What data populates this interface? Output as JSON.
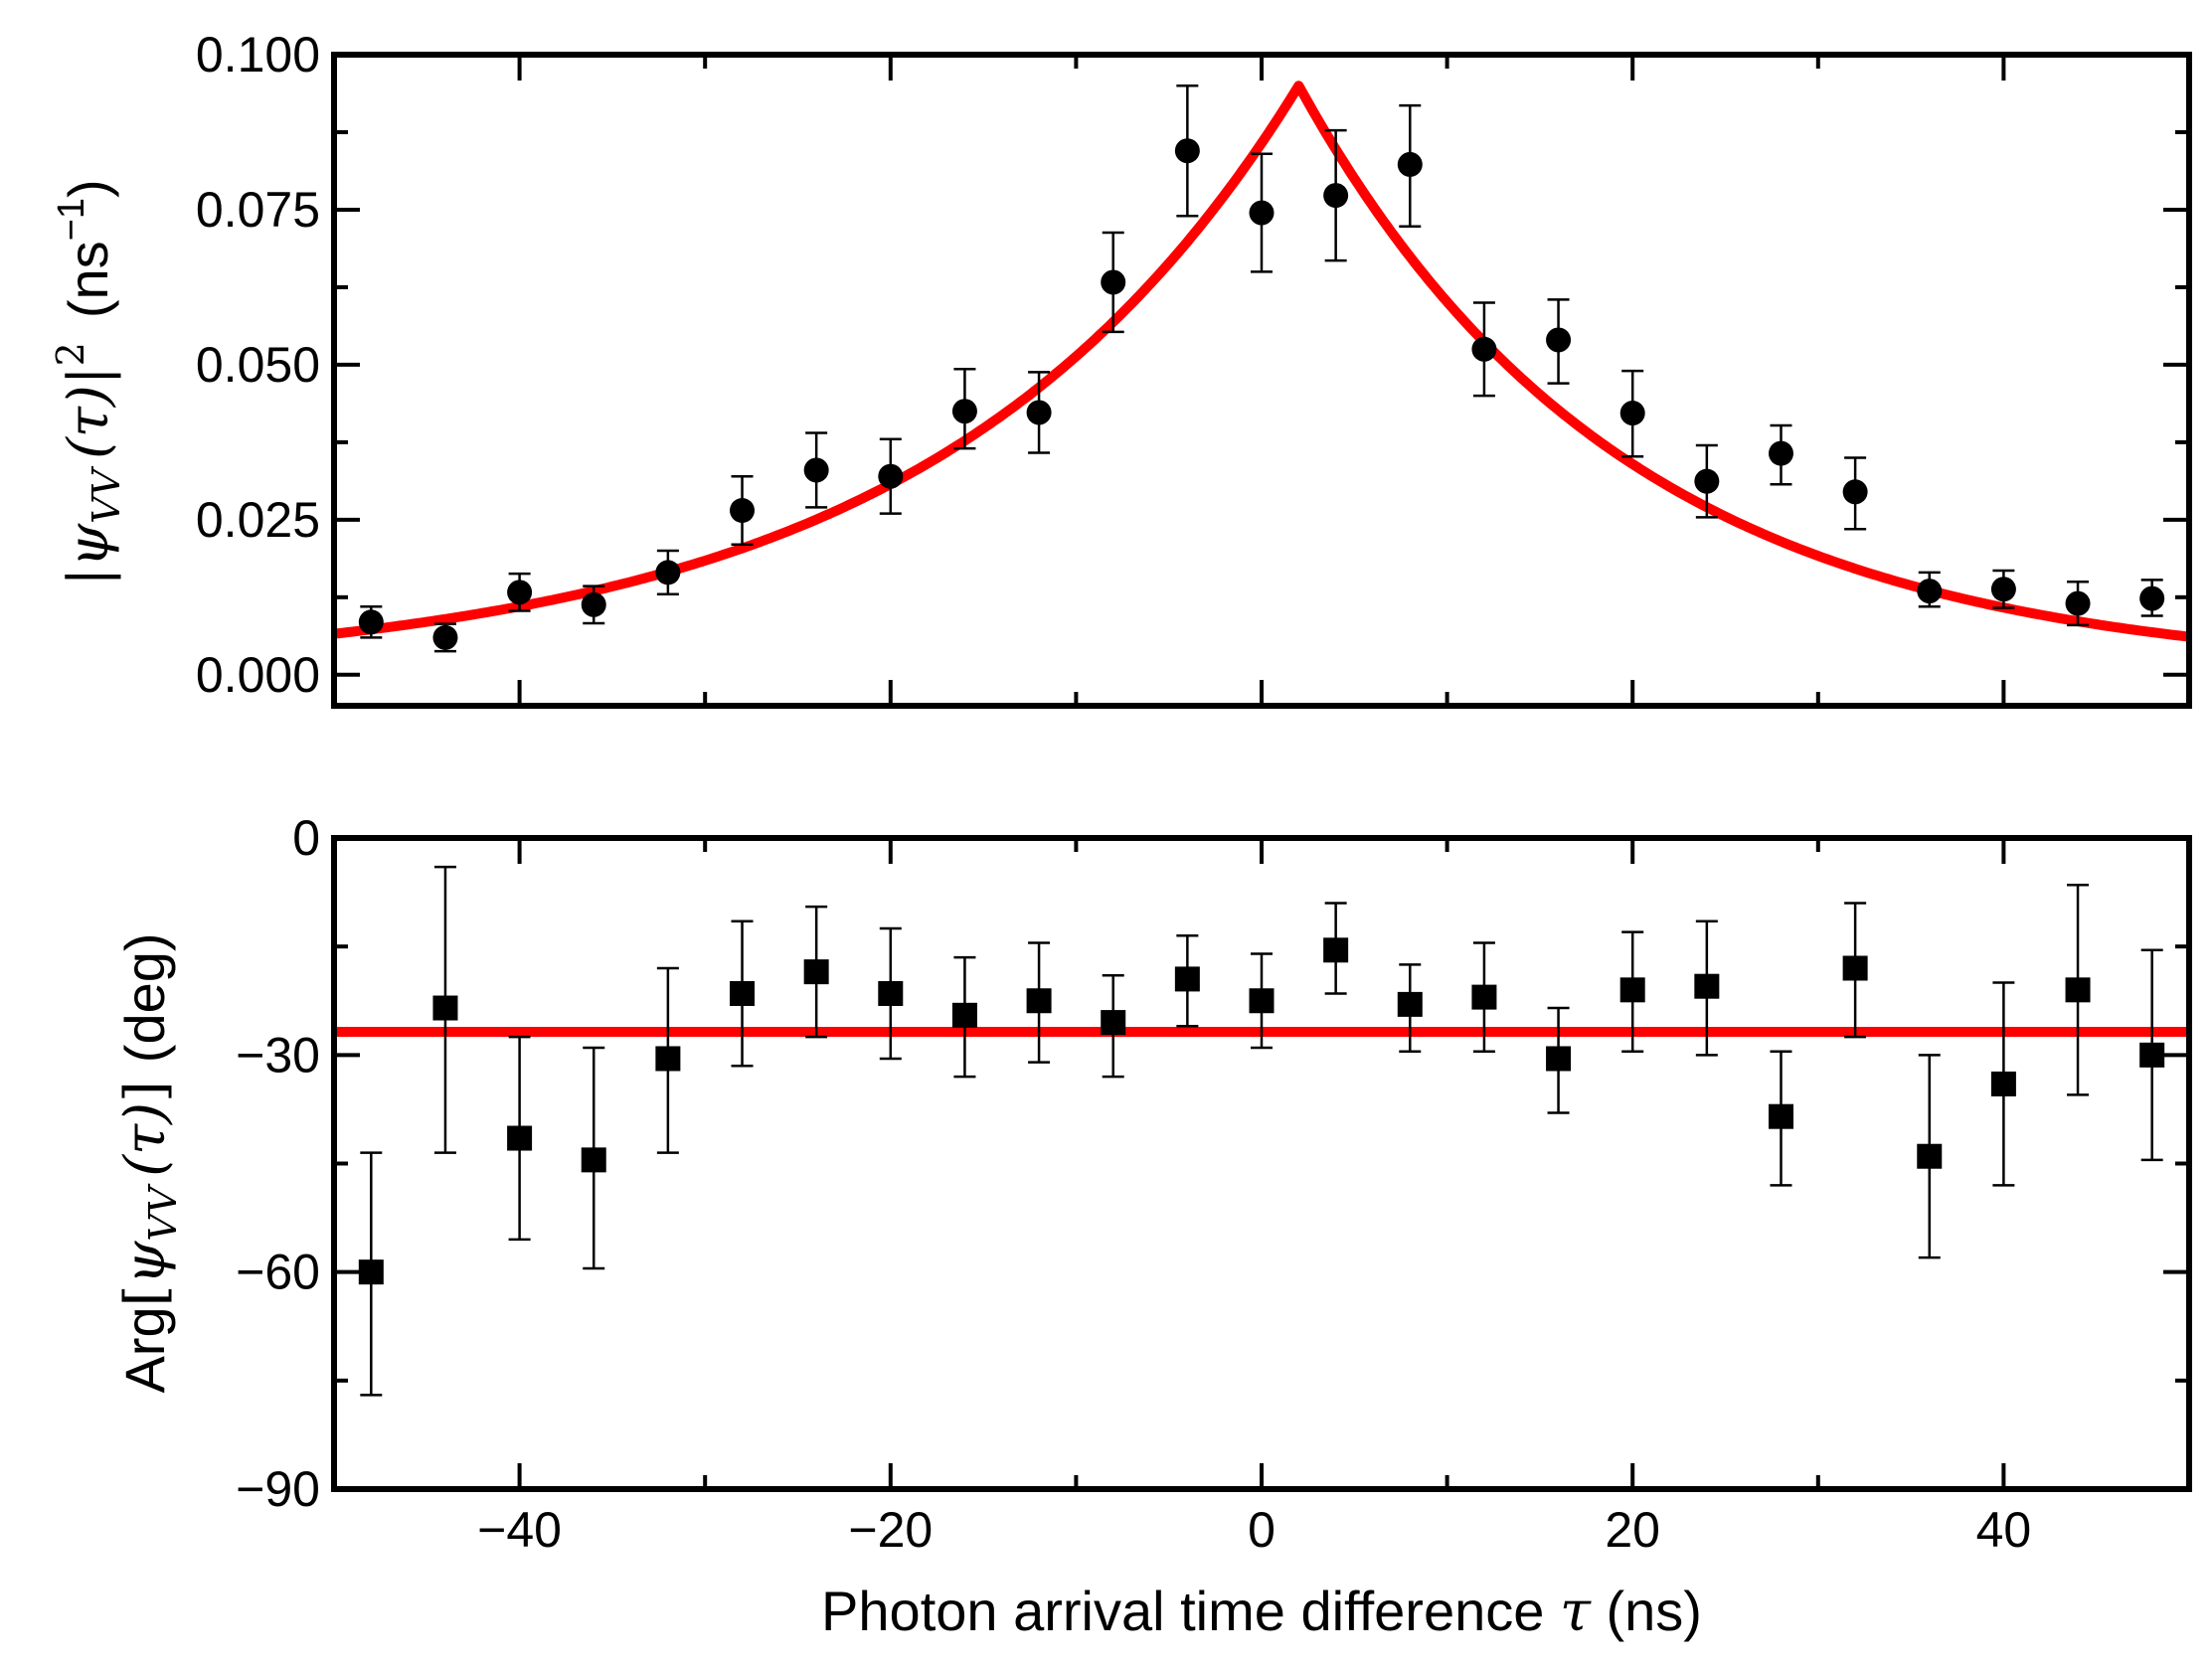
{
  "chart_data": [
    {
      "type": "scatter",
      "panel": "top",
      "ylabel": "|ψ_VV(τ)|² (ns⁻¹)",
      "ylabel_parts": {
        "bar_open": "|",
        "psi": "ψ",
        "sub": "VV",
        "tau": "(τ)",
        "bar_close": "|",
        "sup": "2",
        "unit": "(ns",
        "unit_exp": "−1",
        "unit_close": ")"
      },
      "xlim": [
        -50,
        50
      ],
      "ylim": [
        -0.005,
        0.1
      ],
      "yticks": [
        0.0,
        0.025,
        0.05,
        0.075,
        0.1
      ],
      "ytick_labels": [
        "0.000",
        "0.025",
        "0.050",
        "0.075",
        "0.100"
      ],
      "marker": "circle",
      "marker_color": "#000000",
      "x": [
        -48,
        -44,
        -40,
        -36,
        -32,
        -28,
        -24,
        -20,
        -16,
        -12,
        -8,
        -4,
        0,
        4,
        8,
        12,
        16,
        20,
        24,
        28,
        32,
        36,
        40,
        44,
        48
      ],
      "y": [
        0.0085,
        0.006,
        0.0133,
        0.0113,
        0.0165,
        0.0265,
        0.033,
        0.032,
        0.0425,
        0.0423,
        0.0633,
        0.0845,
        0.0745,
        0.0773,
        0.0823,
        0.0525,
        0.054,
        0.0422,
        0.0312,
        0.0357,
        0.0295,
        0.0135,
        0.0138,
        0.0115,
        0.0123
      ],
      "yerr_low": [
        0.0025,
        0.0022,
        0.003,
        0.003,
        0.0035,
        0.0055,
        0.006,
        0.006,
        0.006,
        0.0065,
        0.008,
        0.0105,
        0.0095,
        0.0105,
        0.01,
        0.0075,
        0.007,
        0.007,
        0.0058,
        0.005,
        0.006,
        0.0025,
        0.003,
        0.0035,
        0.0028
      ],
      "yerr_high": [
        0.0025,
        0.0022,
        0.003,
        0.003,
        0.0035,
        0.0055,
        0.006,
        0.006,
        0.0068,
        0.0065,
        0.008,
        0.0105,
        0.0095,
        0.0105,
        0.0095,
        0.0075,
        0.0065,
        0.0068,
        0.0058,
        0.0045,
        0.0055,
        0.003,
        0.003,
        0.0035,
        0.003
      ],
      "fit": {
        "color": "#ff0000",
        "form": "two-sided exponential",
        "peak_x": 2.0,
        "peak_y": 0.095,
        "decay_left_ns": 19.5,
        "decay_right_ns": 17.5
      }
    },
    {
      "type": "scatter",
      "panel": "bottom",
      "xlabel": "Photon arrival time difference τ (ns)",
      "xlabel_parts": {
        "text": "Photon arrival time difference ",
        "tau": "τ",
        "unit": " (ns)"
      },
      "ylabel": "Arg[ψ_VV(τ)] (deg)",
      "ylabel_parts": {
        "arg": "Arg",
        "bracket_open": "[",
        "psi": "ψ",
        "sub": "VV",
        "tau": "(τ)",
        "bracket_close": "]",
        "unit": "(deg)"
      },
      "xlim": [
        -50,
        50
      ],
      "xticks": [
        -40,
        -20,
        0,
        20,
        40
      ],
      "xtick_labels": [
        "−40",
        "−20",
        "0",
        "20",
        "40"
      ],
      "ylim": [
        -90,
        0
      ],
      "yticks": [
        -90,
        -60,
        -30,
        0
      ],
      "ytick_labels": [
        "−90",
        "−60",
        "−30",
        "0"
      ],
      "marker": "square",
      "marker_color": "#000000",
      "x": [
        -48,
        -44,
        -40,
        -36,
        -32,
        -28,
        -24,
        -20,
        -16,
        -12,
        -8,
        -4,
        0,
        4,
        8,
        12,
        16,
        20,
        24,
        28,
        32,
        36,
        40,
        44,
        48
      ],
      "y": [
        -60,
        -23.5,
        -41.5,
        -44.5,
        -30.5,
        -21.5,
        -18.5,
        -21.5,
        -24.5,
        -22.5,
        -25.5,
        -19.5,
        -22.5,
        -15.5,
        -23,
        -22,
        -30.5,
        -21,
        -20.5,
        -38.5,
        -18,
        -44,
        -34,
        -21,
        -30
      ],
      "yerr_low": [
        17,
        20,
        14,
        15,
        13,
        10,
        9,
        9,
        8.5,
        8.5,
        7.5,
        6.5,
        6.5,
        6,
        6.5,
        7.5,
        7.5,
        8.5,
        9.5,
        9.5,
        9.5,
        14,
        14,
        14.5,
        14.5
      ],
      "yerr_high": [
        16.5,
        19.5,
        14,
        15.5,
        12.5,
        10,
        9,
        9,
        8,
        8,
        6.5,
        6,
        6.5,
        6.5,
        5.5,
        7.5,
        7,
        8,
        9,
        9,
        9,
        14,
        14,
        14.5,
        14.5
      ],
      "fit": {
        "color": "#ff0000",
        "form": "constant",
        "value": -26.8
      }
    }
  ]
}
